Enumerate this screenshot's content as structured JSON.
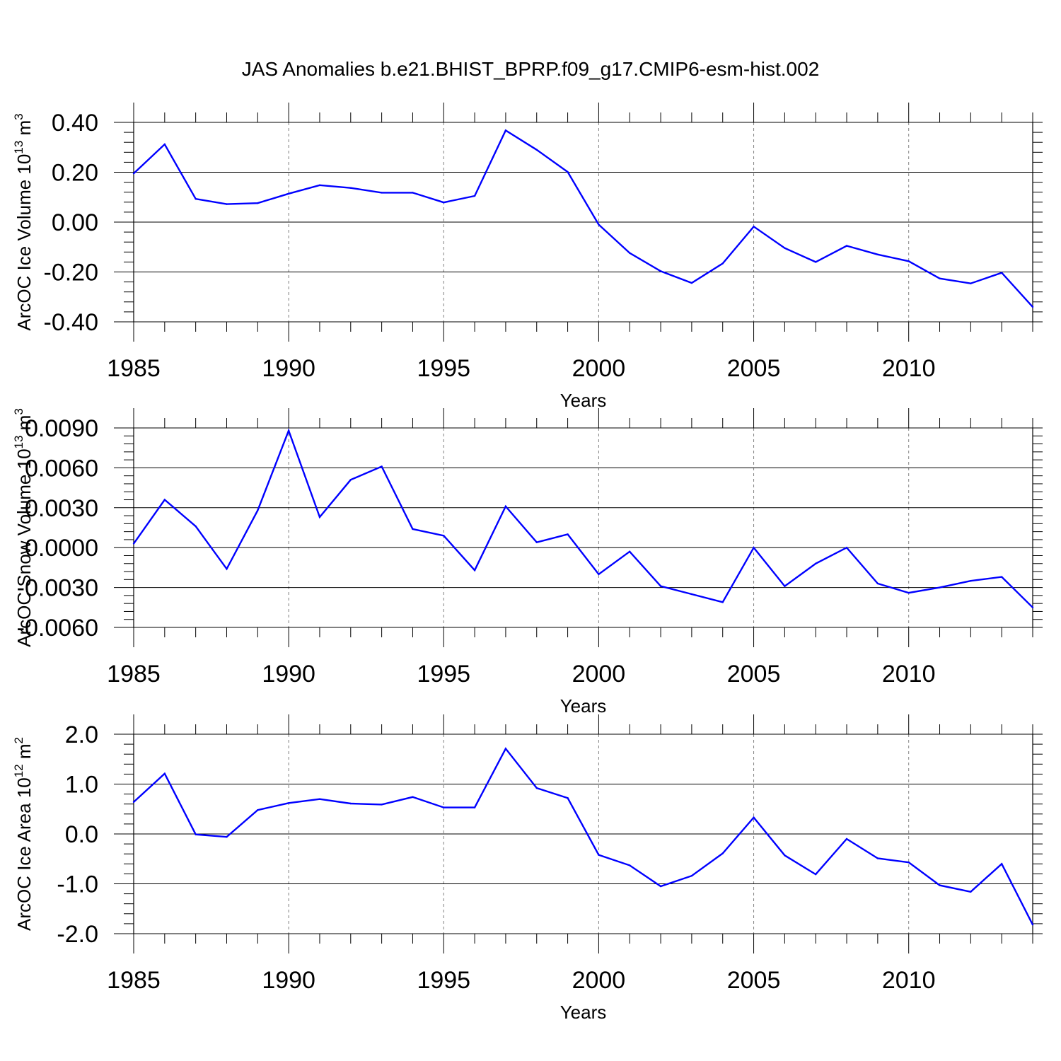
{
  "title": "JAS Anomalies b.e21.BHIST_BPRP.f09_g17.CMIP6-esm-hist.002",
  "colors": {
    "line": "#0000ff",
    "axis": "#000000",
    "grid": "#808080"
  },
  "chart_data": [
    {
      "type": "line",
      "ylabel": {
        "text": "ArcOC Ice Volume 10",
        "sup": "13",
        "unit": " m",
        "unit_sup": "3"
      },
      "xlabel": "Years",
      "xlim": [
        1985,
        2014
      ],
      "ylim": [
        -0.4,
        0.4
      ],
      "yticks": [
        0.4,
        0.2,
        0.0,
        -0.2,
        -0.4
      ],
      "ytick_labels": [
        "0.40",
        "0.20",
        "0.00",
        "-0.20",
        "-0.40"
      ],
      "xticks": [
        1985,
        1990,
        1995,
        2000,
        2005,
        2010
      ],
      "xtick_labels": [
        "1985",
        "1990",
        "1995",
        "2000",
        "2005",
        "2010"
      ],
      "grid_x": [
        1990,
        1995,
        2000,
        2005,
        2010
      ],
      "x": [
        1985,
        1986,
        1987,
        1988,
        1989,
        1990,
        1991,
        1992,
        1993,
        1994,
        1995,
        1996,
        1997,
        1998,
        1999,
        2000,
        2001,
        2002,
        2003,
        2004,
        2005,
        2006,
        2007,
        2008,
        2009,
        2010,
        2011,
        2012,
        2013,
        2014
      ],
      "values": [
        0.195,
        0.312,
        0.093,
        0.072,
        0.076,
        0.114,
        0.148,
        0.137,
        0.118,
        0.118,
        0.079,
        0.105,
        0.368,
        0.29,
        0.201,
        -0.01,
        -0.124,
        -0.197,
        -0.244,
        -0.166,
        -0.018,
        -0.104,
        -0.16,
        -0.095,
        -0.13,
        -0.157,
        -0.226,
        -0.246,
        -0.203,
        -0.34
      ]
    },
    {
      "type": "line",
      "ylabel": {
        "text": "ArcOC Snow Volume 10",
        "sup": "13",
        "unit": " m",
        "unit_sup": "3"
      },
      "xlabel": "Years",
      "xlim": [
        1985,
        2014
      ],
      "ylim": [
        -0.006,
        0.009
      ],
      "yticks": [
        0.009,
        0.006,
        0.003,
        0.0,
        -0.003,
        -0.006
      ],
      "ytick_labels": [
        "0.0090",
        "0.0060",
        "0.0030",
        "0.0000",
        "-0.0030",
        "-0.0060"
      ],
      "xticks": [
        1985,
        1990,
        1995,
        2000,
        2005,
        2010
      ],
      "xtick_labels": [
        "1985",
        "1990",
        "1995",
        "2000",
        "2005",
        "2010"
      ],
      "grid_x": [
        1990,
        1995,
        2000,
        2005,
        2010
      ],
      "x": [
        1985,
        1986,
        1987,
        1988,
        1989,
        1990,
        1991,
        1992,
        1993,
        1994,
        1995,
        1996,
        1997,
        1998,
        1999,
        2000,
        2001,
        2002,
        2003,
        2004,
        2005,
        2006,
        2007,
        2008,
        2009,
        2010,
        2011,
        2012,
        2013,
        2014
      ],
      "values": [
        0.0003,
        0.0036,
        0.0016,
        -0.0016,
        0.0028,
        0.0088,
        0.0023,
        0.0051,
        0.0061,
        0.0014,
        0.0009,
        -0.0017,
        0.0031,
        0.0004,
        0.001,
        -0.002,
        -0.0003,
        -0.0029,
        -0.0035,
        -0.0041,
        0.0,
        -0.0029,
        -0.0012,
        -0.0,
        -0.0027,
        -0.0034,
        -0.003,
        -0.0025,
        -0.0022,
        -0.0045
      ]
    },
    {
      "type": "line",
      "ylabel": {
        "text": "ArcOC Ice Area 10",
        "sup": "12",
        "unit": " m",
        "unit_sup": "2"
      },
      "xlabel": "Years",
      "xlim": [
        1985,
        2014
      ],
      "ylim": [
        -2.0,
        2.0
      ],
      "yticks": [
        2.0,
        1.0,
        0.0,
        -1.0,
        -2.0
      ],
      "ytick_labels": [
        "2.0",
        "1.0",
        "0.0",
        "-1.0",
        "-2.0"
      ],
      "xticks": [
        1985,
        1990,
        1995,
        2000,
        2005,
        2010
      ],
      "xtick_labels": [
        "1985",
        "1990",
        "1995",
        "2000",
        "2005",
        "2010"
      ],
      "grid_x": [
        1990,
        1995,
        2000,
        2005,
        2010
      ],
      "x": [
        1985,
        1986,
        1987,
        1988,
        1989,
        1990,
        1991,
        1992,
        1993,
        1994,
        1995,
        1996,
        1997,
        1998,
        1999,
        2000,
        2001,
        2002,
        2003,
        2004,
        2005,
        2006,
        2007,
        2008,
        2009,
        2010,
        2011,
        2012,
        2013,
        2014
      ],
      "values": [
        0.64,
        1.21,
        -0.01,
        -0.06,
        0.48,
        0.62,
        0.7,
        0.61,
        0.59,
        0.74,
        0.53,
        0.53,
        1.71,
        0.92,
        0.72,
        -0.42,
        -0.63,
        -1.05,
        -0.84,
        -0.39,
        0.33,
        -0.43,
        -0.81,
        -0.1,
        -0.49,
        -0.57,
        -1.03,
        -1.16,
        -0.6,
        -1.82
      ]
    }
  ]
}
